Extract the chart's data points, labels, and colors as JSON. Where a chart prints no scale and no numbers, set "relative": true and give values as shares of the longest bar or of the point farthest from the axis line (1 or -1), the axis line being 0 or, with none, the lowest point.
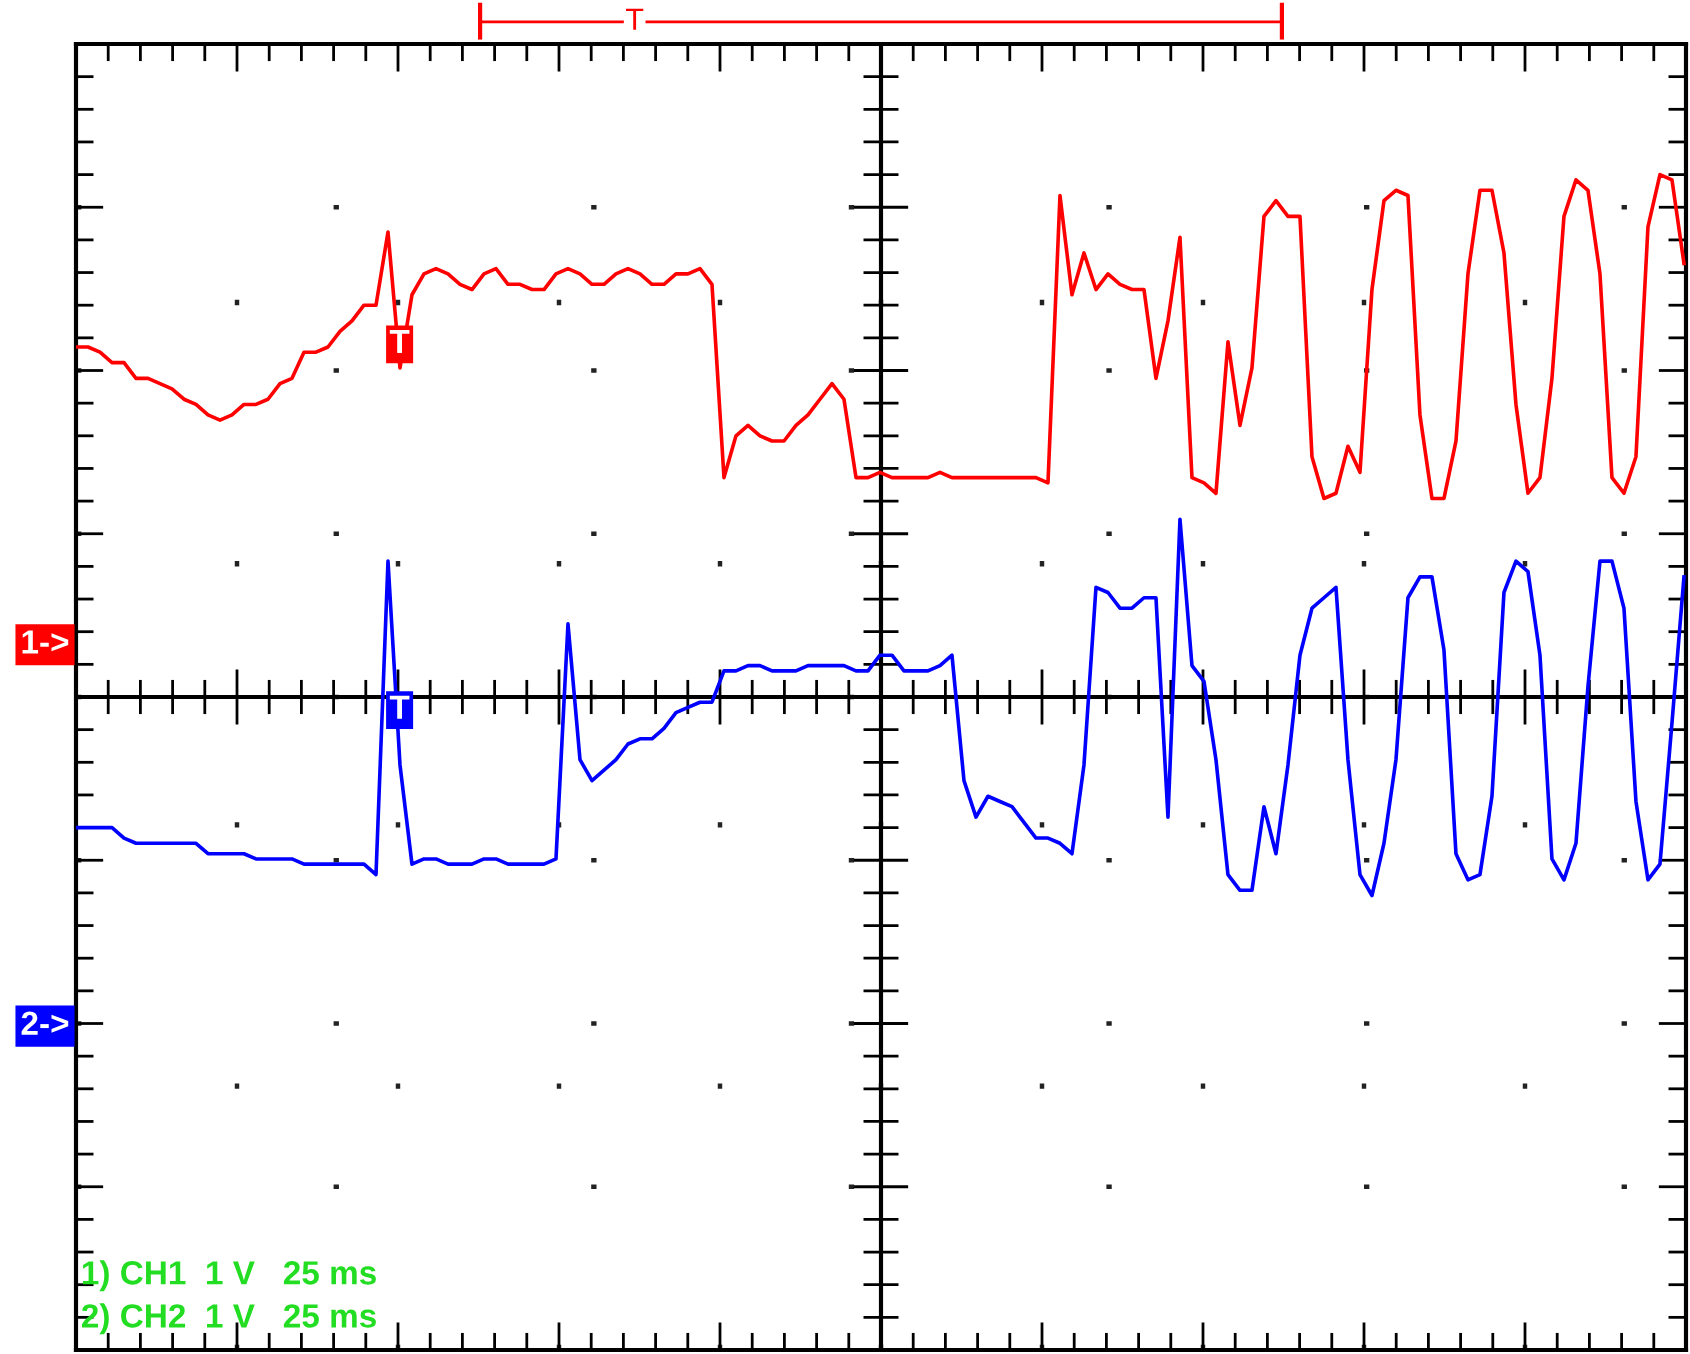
{
  "chart_data": {
    "type": "line",
    "relative": true,
    "grid": true,
    "legend": false,
    "marker": "none",
    "line_style": "solid",
    "categories": [
      null,
      null,
      null,
      null,
      null,
      null,
      null,
      null,
      null,
      null,
      null,
      null,
      null,
      null,
      null,
      null,
      null,
      null,
      null,
      null,
      null,
      null,
      null,
      null,
      null,
      null,
      null,
      null,
      null,
      null,
      null,
      null,
      null,
      null,
      null,
      null,
      null,
      null,
      null,
      null,
      null,
      null,
      null,
      null,
      null,
      null,
      null,
      null,
      null,
      null,
      null,
      null,
      null,
      null,
      null,
      null,
      null,
      null,
      null,
      null,
      null,
      null,
      null,
      null,
      null,
      null,
      null,
      null,
      null,
      null,
      null,
      null,
      null,
      null,
      null,
      null,
      null,
      null,
      null,
      null,
      null,
      null,
      null,
      null,
      null,
      null,
      null,
      null,
      null,
      null,
      null,
      null,
      null,
      null,
      null,
      null,
      null,
      null,
      null,
      null,
      null,
      null,
      null,
      null,
      null,
      null,
      null,
      null,
      null,
      null,
      null,
      null,
      null,
      null,
      null,
      null,
      null,
      null,
      null,
      null,
      null,
      null,
      null,
      null,
      null,
      null,
      null,
      null,
      null,
      null,
      null,
      null,
      null,
      null,
      null
    ],
    "series": [
      {
        "color": "#ff0000",
        "values": [
          0.67,
          0.67,
          0.66,
          0.64,
          0.64,
          0.61,
          0.61,
          0.6,
          0.59,
          0.57,
          0.56,
          0.54,
          0.53,
          0.54,
          0.56,
          0.56,
          0.57,
          0.6,
          0.61,
          0.66,
          0.66,
          0.67,
          0.7,
          0.72,
          0.75,
          0.75,
          0.89,
          0.63,
          0.77,
          0.81,
          0.82,
          0.81,
          0.79,
          0.78,
          0.81,
          0.82,
          0.79,
          0.79,
          0.78,
          0.78,
          0.81,
          0.82,
          0.81,
          0.79,
          0.79,
          0.81,
          0.82,
          0.81,
          0.79,
          0.79,
          0.81,
          0.81,
          0.82,
          0.79,
          0.42,
          0.5,
          0.52,
          0.5,
          0.49,
          0.49,
          0.52,
          0.54,
          0.57,
          0.6,
          0.57,
          0.42,
          0.42,
          0.43,
          0.42,
          0.42,
          0.42,
          0.42,
          0.43,
          0.42,
          0.42,
          0.42,
          0.42,
          0.42,
          0.42,
          0.42,
          0.42,
          0.41,
          0.96,
          0.77,
          0.85,
          0.78,
          0.81,
          0.79,
          0.78,
          0.78,
          0.61,
          0.72,
          0.88,
          0.42,
          0.41,
          0.39,
          0.68,
          0.52,
          0.63,
          0.92,
          0.95,
          0.92,
          0.92,
          0.46,
          0.38,
          0.39,
          0.48,
          0.43,
          0.78,
          0.95,
          0.97,
          0.96,
          0.54,
          0.38,
          0.38,
          0.49,
          0.81,
          0.97,
          0.97,
          0.85,
          0.56,
          0.39,
          0.42,
          0.61,
          0.92,
          0.99,
          0.97,
          0.81,
          0.42,
          0.39,
          0.46,
          0.9,
          1.0,
          0.99,
          0.83
        ]
      },
      {
        "color": "#0000ff",
        "values": [
          -0.25,
          -0.25,
          -0.25,
          -0.25,
          -0.27,
          -0.28,
          -0.28,
          -0.28,
          -0.28,
          -0.28,
          -0.28,
          -0.3,
          -0.3,
          -0.3,
          -0.3,
          -0.31,
          -0.31,
          -0.31,
          -0.31,
          -0.32,
          -0.32,
          -0.32,
          -0.32,
          -0.32,
          -0.32,
          -0.34,
          0.26,
          -0.13,
          -0.32,
          -0.31,
          -0.31,
          -0.32,
          -0.32,
          -0.32,
          -0.31,
          -0.31,
          -0.32,
          -0.32,
          -0.32,
          -0.32,
          -0.31,
          0.14,
          -0.12,
          -0.16,
          -0.14,
          -0.12,
          -0.09,
          -0.08,
          -0.08,
          -0.06,
          -0.03,
          -0.02,
          -0.01,
          -0.01,
          0.05,
          0.05,
          0.06,
          0.06,
          0.05,
          0.05,
          0.05,
          0.06,
          0.06,
          0.06,
          0.06,
          0.05,
          0.05,
          0.08,
          0.08,
          0.05,
          0.05,
          0.05,
          0.06,
          0.08,
          -0.16,
          -0.23,
          -0.19,
          -0.2,
          -0.21,
          -0.24,
          -0.27,
          -0.27,
          -0.28,
          -0.3,
          -0.13,
          0.21,
          0.2,
          0.17,
          0.17,
          0.19,
          0.19,
          -0.23,
          0.34,
          0.06,
          0.03,
          -0.12,
          -0.34,
          -0.37,
          -0.37,
          -0.21,
          -0.3,
          -0.13,
          0.08,
          0.17,
          0.19,
          0.21,
          -0.12,
          -0.34,
          -0.38,
          -0.28,
          -0.12,
          0.19,
          0.23,
          0.23,
          0.09,
          -0.3,
          -0.35,
          -0.34,
          -0.19,
          0.2,
          0.26,
          0.24,
          0.08,
          -0.31,
          -0.35,
          -0.28,
          0.02,
          0.26,
          0.26,
          0.17,
          -0.2,
          -0.35,
          -0.32,
          -0.05,
          0.23
        ]
      }
    ],
    "annotations": [
      "1->",
      "2->",
      "T",
      "T",
      "T",
      "1) CH1  1 V   25 ms",
      "2) CH2  1 V   25 ms"
    ]
  }
}
